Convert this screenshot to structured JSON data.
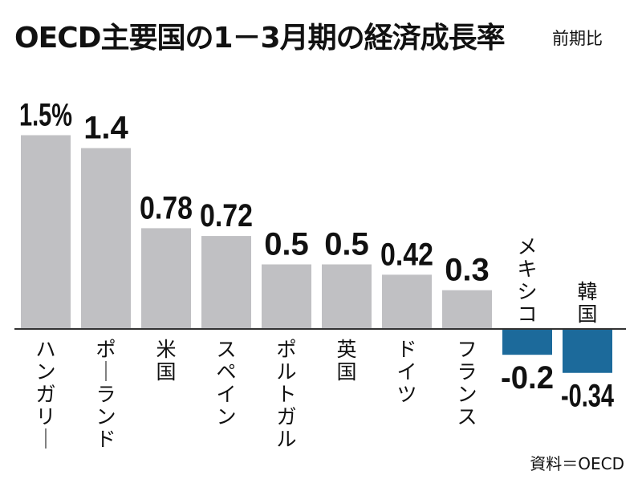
{
  "chart_data": {
    "type": "bar",
    "title": "OECD主要国の1－3月期の経済成長率",
    "subtitle": "前期比",
    "source": "資料＝OECD",
    "categories": [
      "ハンガリー",
      "ポーランド",
      "米国",
      "スペイン",
      "ポルトガル",
      "英国",
      "ドイツ",
      "フランス",
      "メキシコ",
      "韓国"
    ],
    "values": [
      1.5,
      1.4,
      0.78,
      0.72,
      0.5,
      0.5,
      0.42,
      0.3,
      -0.2,
      -0.34
    ],
    "value_labels": [
      "1.5%",
      "1.4",
      "0.78",
      "0.72",
      "0.5",
      "0.5",
      "0.42",
      "0.3",
      "-0.2",
      "-0.34"
    ],
    "positive_color": "#c0c0c3",
    "negative_color": "#1c6a9b",
    "baseline_color": "#333333",
    "legend": "none",
    "grid": false
  }
}
